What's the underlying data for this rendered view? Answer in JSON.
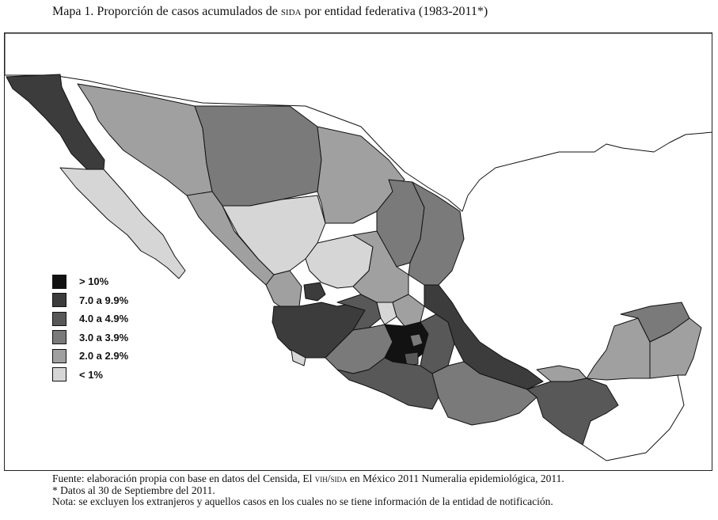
{
  "title": {
    "prefix": "Mapa 1. Proporción de casos acumulados de ",
    "sc": "SIDA",
    "suffix": " por entidad federativa (1983-2011*)"
  },
  "legend": {
    "items": [
      {
        "label": "> 10%",
        "color": "#121212"
      },
      {
        "label": "7.0 a 9.9%",
        "color": "#3c3c3c"
      },
      {
        "label": "4.0 a 4.9%",
        "color": "#585858"
      },
      {
        "label": "3.0 a 3.9%",
        "color": "#7a7a7a"
      },
      {
        "label": "2.0 a 2.9%",
        "color": "#a0a0a0"
      },
      {
        "label": "< 1%",
        "color": "#d6d6d6"
      }
    ]
  },
  "footer": {
    "source_prefix": "Fuente: elaboración propia con base en datos del Censida, El ",
    "source_sc": "VIH/SIDA",
    "source_suffix": " en México 2011 Numeralia epidemiológica, 2011.",
    "note_date": "* Datos al 30 de Septiembre del 2011.",
    "note_exclusion": "Nota: se excluyen los extranjeros y aquellos casos en los cuales no se tiene información de la entidad de notificación."
  }
}
